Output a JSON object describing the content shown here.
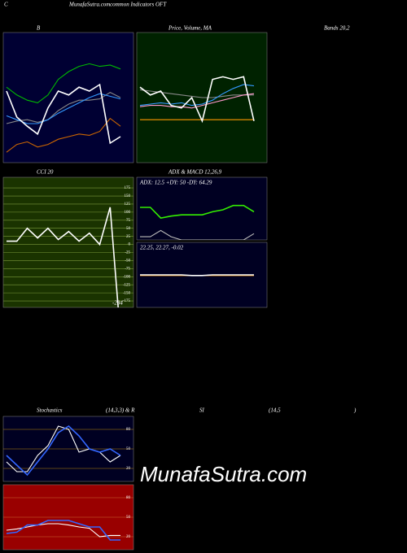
{
  "header": {
    "corner": "C",
    "site": "MunafaSutra.com",
    "title": "common Indicators OFT"
  },
  "captions": [
    "B",
    "Price, Volume, MA",
    "Bands 20,2",
    "CCI 20",
    "ADX  & MACD 12,26,9",
    "Stochastics",
    "(14,3,3) & R",
    "SI",
    "(14,5",
    ")"
  ],
  "watermark": "MunafaSutra.com",
  "chart_data": [
    {
      "type": "line",
      "background": "#000033",
      "ylim": [
        0,
        100
      ],
      "series": [
        {
          "color": "#00bb00",
          "values": [
            58,
            52,
            48,
            46,
            52,
            64,
            70,
            74,
            76,
            74,
            75,
            72
          ]
        },
        {
          "color": "#888888",
          "values": [
            30,
            32,
            33,
            31,
            33,
            40,
            45,
            48,
            48,
            49,
            54,
            50
          ]
        },
        {
          "color": "#cc6600",
          "values": [
            8,
            14,
            16,
            12,
            14,
            18,
            20,
            22,
            21,
            24,
            34,
            28
          ]
        },
        {
          "color": "#3399ff",
          "values": [
            36,
            33,
            30,
            30,
            33,
            38,
            42,
            46,
            50,
            53,
            51,
            49
          ]
        },
        {
          "color": "#ffffff",
          "values": [
            55,
            35,
            28,
            22,
            42,
            55,
            52,
            58,
            55,
            60,
            15,
            20
          ]
        }
      ]
    },
    {
      "type": "line",
      "background": "#002200",
      "ylim": [
        0,
        100
      ],
      "series": [
        {
          "color": "#ff9900",
          "values": [
            33,
            33,
            33,
            33,
            33,
            33,
            33,
            33,
            33,
            33,
            33,
            33
          ]
        },
        {
          "color": "#888888",
          "values": [
            56,
            55,
            54,
            53,
            52,
            51,
            50,
            50,
            51,
            52,
            52,
            52
          ]
        },
        {
          "color": "#ff99cc",
          "values": [
            43,
            44,
            44,
            43,
            43,
            42,
            44,
            46,
            48,
            50,
            52,
            53
          ]
        },
        {
          "color": "#3399ff",
          "values": [
            44,
            45,
            46,
            45,
            46,
            44,
            45,
            48,
            53,
            57,
            60,
            59
          ]
        },
        {
          "color": "#ffffff",
          "values": [
            58,
            52,
            55,
            44,
            42,
            50,
            32,
            64,
            66,
            64,
            66,
            32
          ]
        }
      ]
    },
    {
      "type": "line",
      "background": "#1a3300",
      "grid": true,
      "grid_color": "#7a9a3a",
      "ylim": [
        -195,
        208
      ],
      "yticks": [
        175,
        150,
        125,
        100,
        75,
        50,
        25,
        0,
        -25,
        -50,
        -75,
        -100,
        -125,
        -150,
        -175
      ],
      "series": [
        {
          "color": "#ffffff",
          "values": [
            10,
            10,
            50,
            20,
            50,
            15,
            40,
            10,
            35,
            0,
            115,
            -284
          ]
        }
      ]
    },
    {
      "type": "line",
      "background": "#000022",
      "ylim": [
        0,
        100
      ],
      "annotation": "ADX: 12.5 +DY: 50 -DY: 64.29",
      "series": [
        {
          "color": "#bbbbbb",
          "values": [
            5,
            5,
            15,
            5,
            0,
            0,
            0,
            0,
            0,
            0,
            0,
            10
          ]
        },
        {
          "color": "#33ee00",
          "values": [
            52,
            52,
            35,
            38,
            40,
            40,
            40,
            45,
            48,
            55,
            55,
            45
          ]
        }
      ]
    },
    {
      "type": "line",
      "background": "#000022",
      "ylim": [
        0,
        100
      ],
      "annotation": "22.25, 22.27, -0.02",
      "series": [
        {
          "color": "#ff9900",
          "values": [
            49,
            49,
            49,
            49,
            49,
            49,
            49,
            49,
            49,
            49,
            49,
            49
          ]
        },
        {
          "color": "#ffffff",
          "values": [
            50,
            50,
            50,
            50,
            50,
            49,
            49,
            50,
            50,
            50,
            50,
            50
          ]
        }
      ]
    },
    {
      "type": "line",
      "background": "#000022",
      "grid": true,
      "grid_color": "#b8860b",
      "ylim": [
        0,
        100
      ],
      "yticks": [
        80,
        50,
        20
      ],
      "series": [
        {
          "color": "#ffffff",
          "values": [
            30,
            15,
            15,
            40,
            55,
            85,
            80,
            45,
            50,
            45,
            30,
            40
          ]
        },
        {
          "color": "#3366ff",
          "values": [
            40,
            25,
            10,
            30,
            50,
            75,
            85,
            70,
            50,
            45,
            50,
            40
          ]
        }
      ]
    },
    {
      "type": "line",
      "background": "#990000",
      "grid": true,
      "grid_color": "#cc6633",
      "ylim": [
        0,
        100
      ],
      "yticks": [
        80,
        50,
        20
      ],
      "series": [
        {
          "color": "#ffffff",
          "values": [
            30,
            32,
            35,
            38,
            40,
            40,
            38,
            35,
            33,
            20,
            22,
            22
          ]
        },
        {
          "color": "#3366ff",
          "values": [
            25,
            27,
            38,
            38,
            45,
            45,
            45,
            40,
            35,
            35,
            15,
            15
          ]
        }
      ]
    }
  ]
}
